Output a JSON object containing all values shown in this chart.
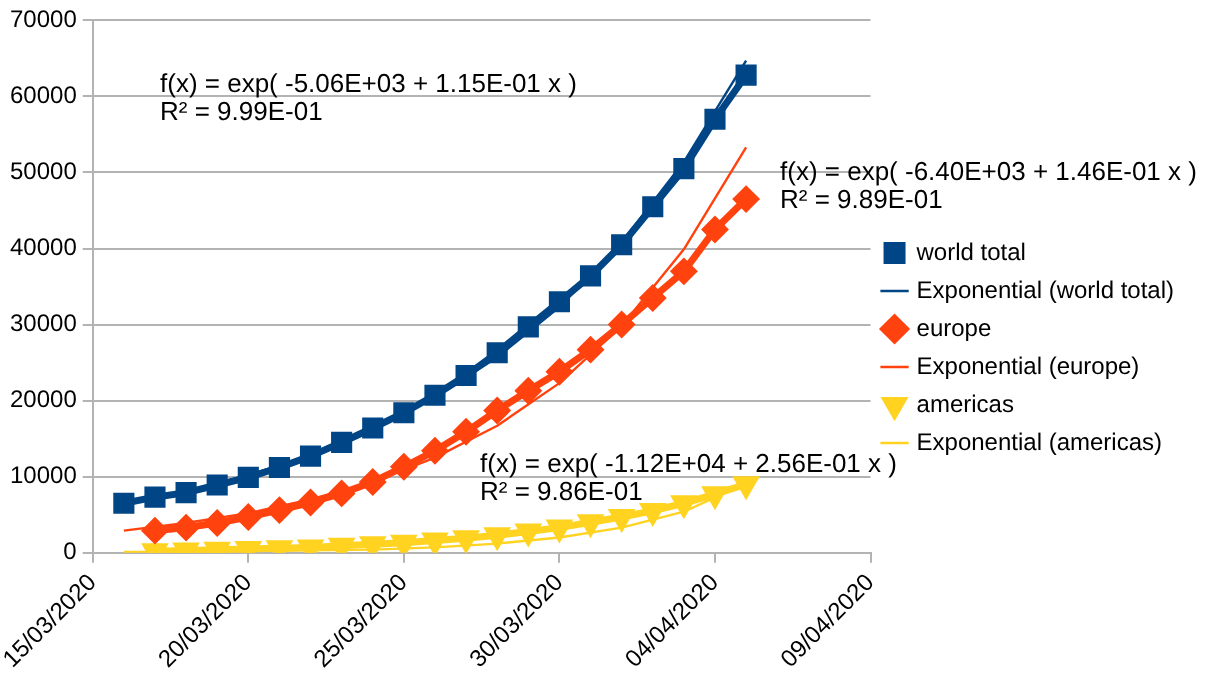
{
  "chart_data": {
    "type": "line",
    "xlim": [
      "2020-03-15",
      "2020-04-09"
    ],
    "xticks": [
      {
        "value": "2020-03-15",
        "label": "15/03/2020"
      },
      {
        "value": "2020-03-20",
        "label": "20/03/2020"
      },
      {
        "value": "2020-03-25",
        "label": "25/03/2020"
      },
      {
        "value": "2020-03-30",
        "label": "30/03/2020"
      },
      {
        "value": "2020-04-04",
        "label": "04/04/2020"
      },
      {
        "value": "2020-04-09",
        "label": "09/04/2020"
      }
    ],
    "ylim": [
      0,
      70000
    ],
    "yticks": [
      0,
      10000,
      20000,
      30000,
      40000,
      50000,
      60000,
      70000
    ],
    "grid": "y",
    "legend": "right",
    "series": [
      {
        "name": "world total",
        "color": "#004586",
        "marker": "square",
        "x": [
          "2020-03-16",
          "2020-03-17",
          "2020-03-18",
          "2020-03-19",
          "2020-03-20",
          "2020-03-21",
          "2020-03-22",
          "2020-03-23",
          "2020-03-24",
          "2020-03-25",
          "2020-03-26",
          "2020-03-27",
          "2020-03-28",
          "2020-03-29",
          "2020-03-30",
          "2020-03-31",
          "2020-04-01",
          "2020-04-02",
          "2020-04-03",
          "2020-04-04",
          "2020-04-05"
        ],
        "values": [
          6500,
          7300,
          7900,
          8900,
          9900,
          11200,
          12700,
          14500,
          16400,
          18400,
          20700,
          23300,
          26300,
          29700,
          33000,
          36400,
          40500,
          45500,
          50500,
          57000,
          62800
        ]
      },
      {
        "name": "Exponential (world total)",
        "color": "#004586",
        "marker": "none",
        "x": [
          "2020-03-16",
          "2020-03-18",
          "2020-03-20",
          "2020-03-22",
          "2020-03-24",
          "2020-03-26",
          "2020-03-28",
          "2020-03-30",
          "2020-04-01",
          "2020-04-03",
          "2020-04-05"
        ],
        "values": [
          6400,
          8100,
          10200,
          12800,
          16200,
          20400,
          25700,
          32300,
          40800,
          51400,
          64700
        ]
      },
      {
        "name": "europe",
        "color": "#ff420e",
        "marker": "diamond",
        "x": [
          "2020-03-17",
          "2020-03-18",
          "2020-03-19",
          "2020-03-20",
          "2020-03-21",
          "2020-03-22",
          "2020-03-23",
          "2020-03-24",
          "2020-03-25",
          "2020-03-26",
          "2020-03-27",
          "2020-03-28",
          "2020-03-29",
          "2020-03-30",
          "2020-03-31",
          "2020-04-01",
          "2020-04-02",
          "2020-04-03",
          "2020-04-04",
          "2020-04-05"
        ],
        "values": [
          2900,
          3300,
          3900,
          4700,
          5600,
          6600,
          7800,
          9300,
          11300,
          13400,
          15900,
          18700,
          21300,
          23800,
          26700,
          30000,
          33500,
          37000,
          42500,
          46500
        ]
      },
      {
        "name": "Exponential (europe)",
        "color": "#ff420e",
        "marker": "none",
        "x": [
          "2020-03-16",
          "2020-03-18",
          "2020-03-20",
          "2020-03-22",
          "2020-03-24",
          "2020-03-26",
          "2020-03-28",
          "2020-03-30",
          "2020-04-01",
          "2020-04-03",
          "2020-04-05"
        ],
        "values": [
          2900,
          3900,
          5200,
          7000,
          9300,
          12500,
          16700,
          22300,
          29800,
          39900,
          53300
        ]
      },
      {
        "name": "americas",
        "color": "#ffd320",
        "marker": "triangle-down",
        "x": [
          "2020-03-17",
          "2020-03-18",
          "2020-03-19",
          "2020-03-20",
          "2020-03-21",
          "2020-03-22",
          "2020-03-23",
          "2020-03-24",
          "2020-03-25",
          "2020-03-26",
          "2020-03-27",
          "2020-03-28",
          "2020-03-29",
          "2020-03-30",
          "2020-03-31",
          "2020-04-01",
          "2020-04-02",
          "2020-04-03",
          "2020-04-04",
          "2020-04-05"
        ],
        "values": [
          200,
          300,
          400,
          500,
          600,
          700,
          900,
          1100,
          1300,
          1600,
          1900,
          2300,
          2800,
          3300,
          4000,
          4700,
          5500,
          6500,
          7700,
          9000
        ]
      },
      {
        "name": "Exponential (americas)",
        "color": "#ffd320",
        "marker": "none",
        "x": [
          "2020-03-16",
          "2020-03-18",
          "2020-03-20",
          "2020-03-22",
          "2020-03-24",
          "2020-03-26",
          "2020-03-28",
          "2020-03-30",
          "2020-04-01",
          "2020-04-03",
          "2020-04-05"
        ],
        "values": [
          100,
          100,
          200,
          300,
          400,
          700,
          1200,
          2000,
          3300,
          5400,
          9100
        ]
      }
    ],
    "annotations": [
      "f(x) = exp( -5.06E+03 + 1.15E-01 x )\nR² = 9.99E-01",
      "f(x) = exp( -6.40E+03 + 1.46E-01 x )\nR² = 9.89E-01",
      "f(x) = exp( -1.12E+04 + 2.56E-01 x )\nR² = 9.86E-01"
    ]
  }
}
